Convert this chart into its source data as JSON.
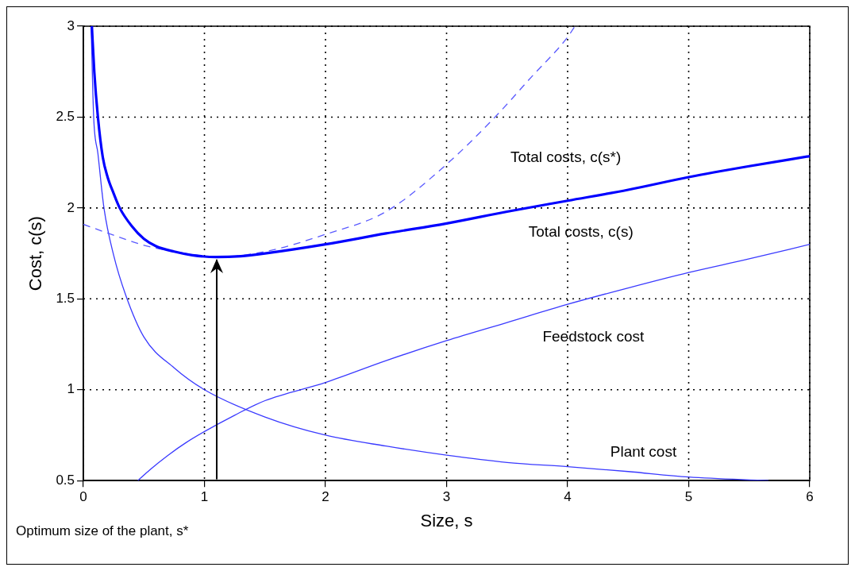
{
  "chart_data": {
    "type": "line",
    "xlabel": "Size, s",
    "ylabel": "Cost, c(s)",
    "xlim": [
      0,
      6
    ],
    "ylim": [
      0.5,
      3
    ],
    "xticks": [
      0,
      1,
      2,
      3,
      4,
      5,
      6
    ],
    "yticks": [
      0.5,
      1,
      1.5,
      2,
      2.5,
      3
    ],
    "grid": true,
    "legend": false,
    "marker": "none",
    "series": [
      {
        "color": "#0000ff",
        "line_style": "solid",
        "x": [
          0.07,
          0.09,
          0.12,
          0.16,
          0.2,
          0.25,
          0.3,
          0.4,
          0.5,
          0.6,
          0.75,
          0.9,
          1.1,
          1.3,
          1.5,
          2,
          2.5,
          3,
          3.5,
          4,
          4.5,
          5,
          5.5,
          6
        ],
        "values": [
          3,
          2.75,
          2.5,
          2.28,
          2.17,
          2.08,
          2,
          1.9,
          1.83,
          1.79,
          1.76,
          1.74,
          1.73,
          1.735,
          1.75,
          1.8,
          1.86,
          1.915,
          1.98,
          2.04,
          2.1,
          2.17,
          2.23,
          2.285
        ]
      },
      {
        "color": "#5a5aff",
        "line_style": "dashed",
        "x": [
          0,
          0.25,
          0.5,
          0.75,
          1,
          1.1,
          1.5,
          2,
          2.5,
          3,
          3.4,
          3.7,
          4,
          4.06
        ],
        "values": [
          1.91,
          1.85,
          1.795,
          1.76,
          1.735,
          1.73,
          1.76,
          1.855,
          1.98,
          2.24,
          2.5,
          2.72,
          2.94,
          3
        ]
      },
      {
        "color": "#3a3aff",
        "line_style": "solid",
        "x": [
          0.064,
          0.085,
          0.12,
          0.17,
          0.25,
          0.35,
          0.5,
          0.75,
          1,
          1.5,
          2,
          2.5,
          3,
          3.5,
          4,
          4.5,
          5,
          5.66
        ],
        "values": [
          3,
          2.5,
          2.3,
          2,
          1.74,
          1.52,
          1.29,
          1.12,
          1,
          0.85,
          0.75,
          0.69,
          0.64,
          0.6,
          0.577,
          0.55,
          0.52,
          0.5
        ]
      },
      {
        "color": "#3a3aff",
        "line_style": "solid",
        "x": [
          0.45,
          0.55,
          0.7,
          0.85,
          1,
          1.25,
          1.5,
          2,
          2.5,
          3,
          3.5,
          4,
          4.5,
          5,
          5.5,
          6
        ],
        "values": [
          0.5,
          0.56,
          0.64,
          0.71,
          0.77,
          0.86,
          0.94,
          1.04,
          1.16,
          1.27,
          1.37,
          1.47,
          1.56,
          1.645,
          1.72,
          1.8
        ]
      }
    ],
    "annotations": [
      "Optimum size of the plant, s*",
      "Total costs, c(s*)",
      "Total costs, c(s)",
      "Feedstock cost",
      "Plant cost"
    ]
  }
}
